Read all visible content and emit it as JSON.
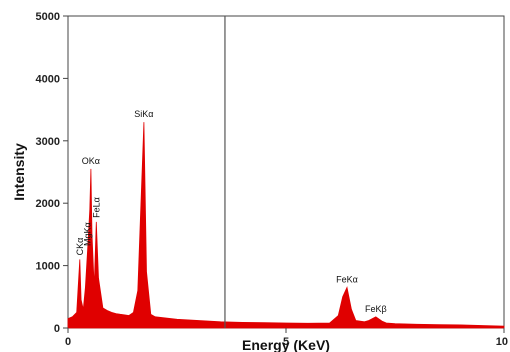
{
  "chart_data": {
    "type": "area",
    "title": "",
    "xlabel": "Energy (KeV)",
    "ylabel": "Intensity",
    "xlim": [
      0,
      10
    ],
    "ylim": [
      0,
      5000
    ],
    "x_ticks": [
      0,
      5,
      10
    ],
    "y_ticks": [
      0,
      1000,
      2000,
      3000,
      4000,
      5000
    ],
    "x_tick_labels": [
      "0",
      "5",
      "10"
    ],
    "y_tick_labels": [
      "0",
      "1000",
      "2000",
      "3000",
      "4000",
      "5000"
    ],
    "grid": false,
    "series": [
      {
        "color": "#e00000",
        "x": [
          0.0,
          0.1,
          0.2,
          0.27,
          0.3,
          0.35,
          0.4,
          0.45,
          0.5,
          0.525,
          0.55,
          0.6,
          0.65,
          0.7,
          0.8,
          0.9,
          1.0,
          1.1,
          1.2,
          1.3,
          1.4,
          1.5,
          1.6,
          1.7,
          1.74,
          1.8,
          1.9,
          2.0,
          2.5,
          3.0,
          3.5,
          4.0,
          4.5,
          5.0,
          5.5,
          6.0,
          6.2,
          6.3,
          6.4,
          6.5,
          6.6,
          6.8,
          6.9,
          7.06,
          7.2,
          7.3,
          7.5,
          8.0,
          8.5,
          9.0,
          9.5,
          10.0
        ],
        "y": [
          150,
          180,
          250,
          1100,
          450,
          300,
          650,
          1250,
          1900,
          2550,
          1500,
          650,
          1700,
          800,
          320,
          280,
          250,
          230,
          220,
          210,
          200,
          250,
          600,
          2500,
          3300,
          900,
          220,
          180,
          140,
          120,
          100,
          90,
          85,
          80,
          75,
          80,
          200,
          500,
          650,
          300,
          120,
          100,
          120,
          180,
          110,
          80,
          70,
          60,
          55,
          50,
          40,
          30
        ]
      }
    ],
    "annotations": [
      {
        "text": "CKα",
        "x": 0.27,
        "y": 1100,
        "rotated": true
      },
      {
        "text": "MgKα",
        "x": 0.45,
        "y": 1250,
        "rotated": true
      },
      {
        "text": "OKα",
        "x": 0.525,
        "y": 2550,
        "rotated": false
      },
      {
        "text": "FeLα",
        "x": 0.65,
        "y": 1700,
        "rotated": true
      },
      {
        "text": "SiKα",
        "x": 1.74,
        "y": 3300,
        "rotated": false
      },
      {
        "text": "FeKα",
        "x": 6.4,
        "y": 650,
        "rotated": false
      },
      {
        "text": "FeKβ",
        "x": 7.06,
        "y": 180,
        "rotated": false
      }
    ],
    "vertical_marker_x": 3.6
  }
}
